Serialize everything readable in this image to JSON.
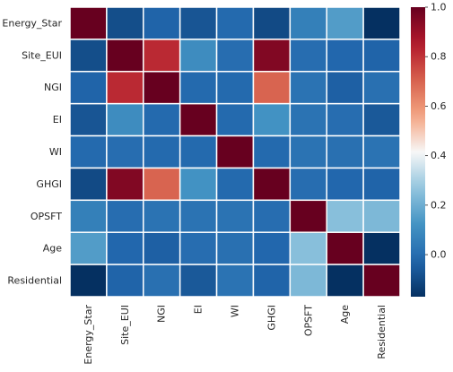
{
  "chart_data": {
    "type": "heatmap",
    "title": "",
    "xlabel": "",
    "ylabel": "",
    "row_labels": [
      "Energy_Star",
      "Site_EUI",
      "NGI",
      "EI",
      "WI",
      "GHGI",
      "OPSFT",
      "Age",
      "Residential"
    ],
    "col_labels": [
      "Energy_Star",
      "Site_EUI",
      "NGI",
      "EI",
      "WI",
      "GHGI",
      "OPSFT",
      "Age",
      "Residential"
    ],
    "values": [
      [
        1.0,
        -0.09,
        -0.03,
        -0.07,
        -0.01,
        -0.1,
        0.06,
        0.15,
        -0.17
      ],
      [
        -0.09,
        1.0,
        0.82,
        0.1,
        0.0,
        0.95,
        0.0,
        -0.02,
        -0.03
      ],
      [
        -0.03,
        0.82,
        1.0,
        -0.01,
        -0.01,
        0.7,
        0.02,
        -0.04,
        0.01
      ],
      [
        -0.07,
        0.1,
        -0.01,
        1.0,
        -0.01,
        0.12,
        0.02,
        0.0,
        -0.06
      ],
      [
        -0.01,
        0.0,
        -0.01,
        -0.01,
        1.0,
        -0.01,
        0.02,
        0.01,
        0.02
      ],
      [
        -0.1,
        0.95,
        0.7,
        0.12,
        -0.01,
        1.0,
        0.0,
        -0.02,
        -0.03
      ],
      [
        0.06,
        0.0,
        0.02,
        0.02,
        0.02,
        0.0,
        1.0,
        0.25,
        0.23
      ],
      [
        0.15,
        -0.02,
        -0.04,
        0.0,
        0.01,
        -0.02,
        0.25,
        1.0,
        -0.17
      ],
      [
        -0.17,
        -0.03,
        0.01,
        -0.06,
        0.02,
        -0.03,
        0.23,
        -0.17,
        1.0
      ]
    ],
    "vmin": -0.17,
    "vmax": 1.0,
    "colormap": "RdBu_r",
    "colorbar": {
      "ticks": [
        0.0,
        0.2,
        0.4,
        0.6,
        0.8,
        1.0
      ],
      "tick_labels": [
        "0.0",
        "0.2",
        "0.4",
        "0.6",
        "0.8",
        "1.0"
      ]
    },
    "grid": false,
    "legend": "colorbar-right"
  }
}
